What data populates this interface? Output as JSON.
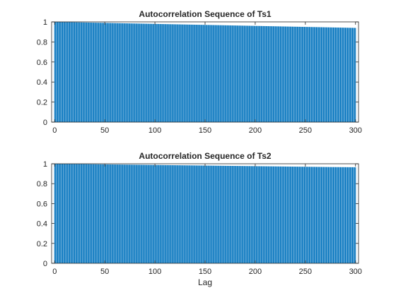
{
  "chart_data": [
    {
      "type": "bar",
      "title": "Autocorrelation Sequence of Ts1",
      "xlabel": "",
      "ylabel": "",
      "xlim": [
        -3,
        303
      ],
      "ylim": [
        0,
        1
      ],
      "xticks": [
        0,
        50,
        100,
        150,
        200,
        250,
        300
      ],
      "xtick_labels": [
        "0",
        "50",
        "100",
        "150",
        "200",
        "250",
        "300"
      ],
      "yticks": [
        0,
        0.2,
        0.4,
        0.6,
        0.8,
        1
      ],
      "ytick_labels": [
        "0",
        "0.2",
        "0.4",
        "0.6",
        "0.8",
        "1"
      ],
      "grid": false,
      "bar_color": "#0072BD",
      "lag_start": 0,
      "lag_end": 300,
      "value_at_lag_0": 1.0,
      "value_at_lag_300": 0.94,
      "x": [
        0,
        25,
        50,
        75,
        100,
        125,
        150,
        175,
        200,
        225,
        250,
        275,
        300
      ],
      "values": [
        1.0,
        0.995,
        0.99,
        0.985,
        0.98,
        0.975,
        0.97,
        0.965,
        0.96,
        0.955,
        0.95,
        0.945,
        0.94
      ]
    },
    {
      "type": "bar",
      "title": "Autocorrelation Sequence of Ts2",
      "xlabel": "Lag",
      "ylabel": "",
      "xlim": [
        -3,
        303
      ],
      "ylim": [
        0,
        1
      ],
      "xticks": [
        0,
        50,
        100,
        150,
        200,
        250,
        300
      ],
      "xtick_labels": [
        "0",
        "50",
        "100",
        "150",
        "200",
        "250",
        "300"
      ],
      "yticks": [
        0,
        0.2,
        0.4,
        0.6,
        0.8,
        1
      ],
      "ytick_labels": [
        "0",
        "0.2",
        "0.4",
        "0.6",
        "0.8",
        "1"
      ],
      "grid": false,
      "bar_color": "#0072BD",
      "lag_start": 0,
      "lag_end": 300,
      "value_at_lag_0": 1.0,
      "value_at_lag_300": 0.965,
      "x": [
        0,
        25,
        50,
        75,
        100,
        125,
        150,
        175,
        200,
        225,
        250,
        275,
        300
      ],
      "values": [
        1.0,
        0.997,
        0.994,
        0.991,
        0.988,
        0.985,
        0.982,
        0.979,
        0.976,
        0.973,
        0.97,
        0.967,
        0.965
      ]
    }
  ]
}
